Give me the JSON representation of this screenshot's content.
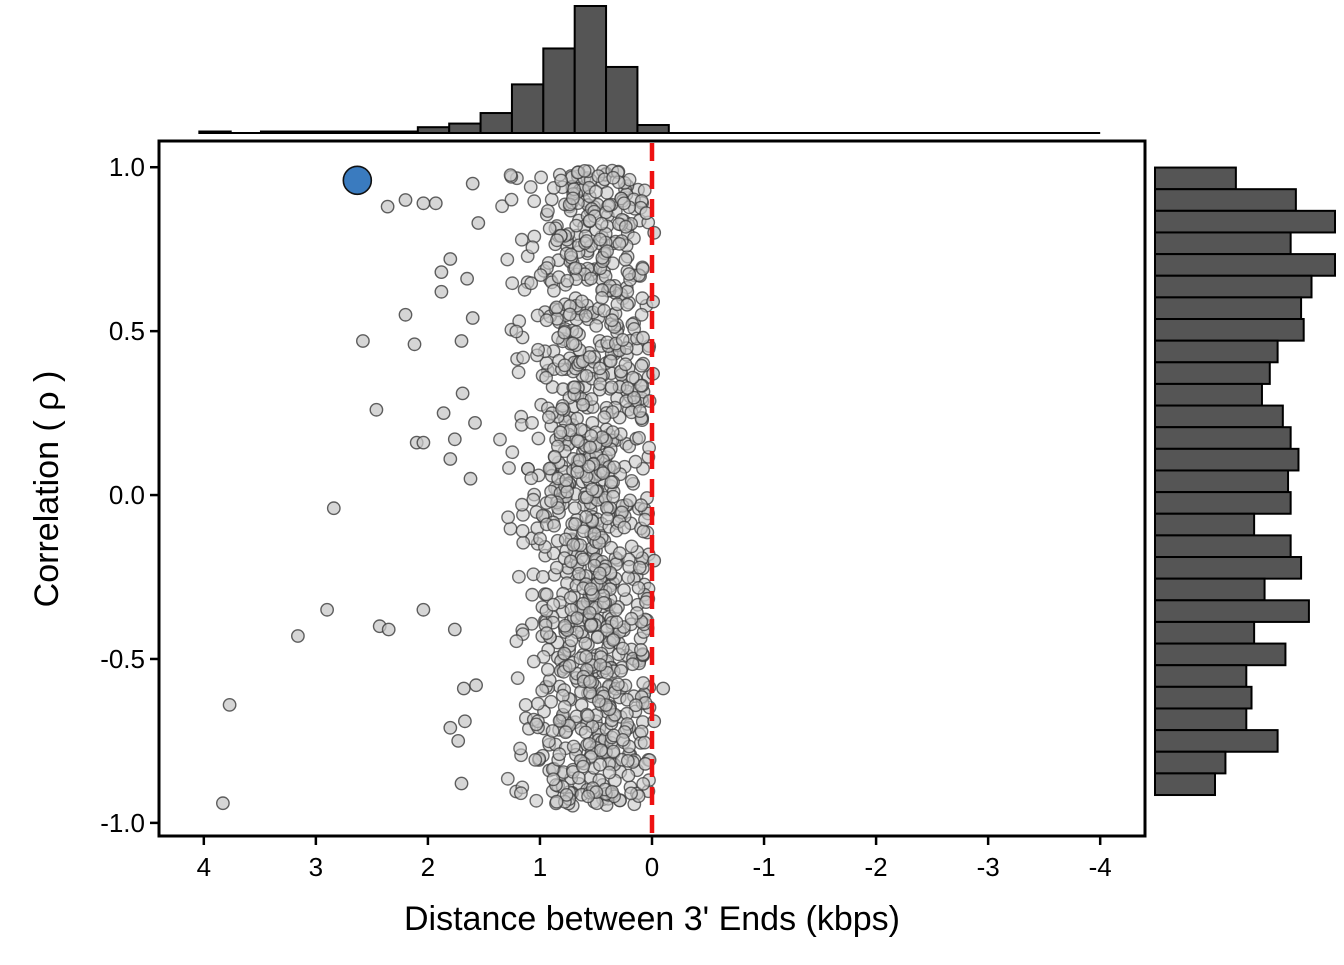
{
  "chart_data": {
    "type": "scatter",
    "xlabel": "Distance between 3' Ends (kbps)",
    "ylabel": "Correlation ( ρ )",
    "xlim": [
      4.4,
      -4.4
    ],
    "ylim": [
      -1.04,
      1.08
    ],
    "x_ticks": [
      4,
      3,
      2,
      1,
      0,
      -1,
      -2,
      -3,
      -4
    ],
    "x_tick_labels": [
      "4",
      "3",
      "2",
      "1",
      "0",
      "-1",
      "-2",
      "-3",
      "-4"
    ],
    "y_ticks": [
      1.0,
      0.5,
      0.0,
      -0.5,
      -1.0
    ],
    "y_tick_labels": [
      "1.0",
      "0.5",
      "0.0",
      "-0.5",
      "-1.0"
    ],
    "reference_line": {
      "x": 0,
      "style": "dashed",
      "color": "#ee1111"
    },
    "highlight_point": {
      "x": 2.63,
      "y": 0.96,
      "color": "#3a7bbf"
    },
    "outlier_points": [
      [
        3.83,
        -0.94
      ],
      [
        3.77,
        -0.64
      ],
      [
        3.16,
        -0.43
      ],
      [
        2.9,
        -0.35
      ],
      [
        2.84,
        -0.04
      ],
      [
        2.58,
        0.97
      ],
      [
        2.46,
        0.26
      ],
      [
        2.43,
        -0.4
      ],
      [
        2.36,
        0.88
      ],
      [
        2.58,
        0.47
      ],
      [
        2.35,
        -0.41
      ],
      [
        2.2,
        0.9
      ],
      [
        2.2,
        0.55
      ],
      [
        2.12,
        0.46
      ],
      [
        2.1,
        0.16
      ],
      [
        2.04,
        0.16
      ],
      [
        2.04,
        -0.35
      ],
      [
        2.04,
        0.89
      ],
      [
        1.93,
        0.89
      ],
      [
        1.88,
        0.68
      ],
      [
        1.88,
        0.62
      ],
      [
        1.86,
        0.25
      ],
      [
        1.8,
        -0.71
      ],
      [
        1.8,
        0.11
      ],
      [
        1.8,
        0.72
      ],
      [
        1.76,
        0.17
      ],
      [
        1.76,
        -0.41
      ],
      [
        1.73,
        -0.75
      ],
      [
        1.7,
        0.47
      ],
      [
        1.7,
        -0.88
      ],
      [
        1.69,
        0.31
      ],
      [
        1.68,
        -0.59
      ],
      [
        1.67,
        -0.69
      ],
      [
        1.65,
        0.66
      ],
      [
        1.62,
        0.05
      ],
      [
        1.6,
        0.54
      ],
      [
        1.6,
        0.95
      ],
      [
        1.58,
        0.22
      ],
      [
        1.57,
        -0.58
      ],
      [
        1.55,
        0.83
      ]
    ],
    "point_cluster": {
      "x_range": [
        0.02,
        1.4
      ],
      "x_mode": 0.55,
      "y_range": [
        -0.95,
        0.99
      ],
      "approx_count": 1100,
      "fill": "#c8c8c8",
      "stroke": "#3a3a3a"
    },
    "x_histogram": {
      "bin_width": 0.28,
      "bins": [
        {
          "x": 3.9,
          "count": 1
        },
        {
          "x": 3.35,
          "count": 1
        },
        {
          "x": 3.07,
          "count": 1
        },
        {
          "x": 2.79,
          "count": 2
        },
        {
          "x": 2.51,
          "count": 2
        },
        {
          "x": 2.23,
          "count": 3
        },
        {
          "x": 1.95,
          "count": 16
        },
        {
          "x": 1.67,
          "count": 26
        },
        {
          "x": 1.39,
          "count": 55
        },
        {
          "x": 1.11,
          "count": 134
        },
        {
          "x": 0.83,
          "count": 233
        },
        {
          "x": 0.55,
          "count": 350
        },
        {
          "x": 0.27,
          "count": 182
        },
        {
          "x": -0.01,
          "count": 22
        }
      ],
      "baseline_range": [
        4.0,
        -4.0
      ]
    },
    "y_histogram": {
      "bin_width": 0.066,
      "bins": [
        {
          "y": 0.966,
          "count": 31
        },
        {
          "y": 0.9,
          "count": 54
        },
        {
          "y": 0.834,
          "count": 69
        },
        {
          "y": 0.768,
          "count": 52
        },
        {
          "y": 0.702,
          "count": 69
        },
        {
          "y": 0.636,
          "count": 60
        },
        {
          "y": 0.57,
          "count": 56
        },
        {
          "y": 0.504,
          "count": 57
        },
        {
          "y": 0.438,
          "count": 47
        },
        {
          "y": 0.372,
          "count": 44
        },
        {
          "y": 0.306,
          "count": 41
        },
        {
          "y": 0.24,
          "count": 49
        },
        {
          "y": 0.174,
          "count": 52
        },
        {
          "y": 0.108,
          "count": 55
        },
        {
          "y": 0.042,
          "count": 51
        },
        {
          "y": -0.024,
          "count": 52
        },
        {
          "y": -0.09,
          "count": 38
        },
        {
          "y": -0.156,
          "count": 52
        },
        {
          "y": -0.222,
          "count": 56
        },
        {
          "y": -0.288,
          "count": 42
        },
        {
          "y": -0.354,
          "count": 59
        },
        {
          "y": -0.42,
          "count": 38
        },
        {
          "y": -0.486,
          "count": 50
        },
        {
          "y": -0.552,
          "count": 35
        },
        {
          "y": -0.618,
          "count": 37
        },
        {
          "y": -0.684,
          "count": 35
        },
        {
          "y": -0.75,
          "count": 47
        },
        {
          "y": -0.816,
          "count": 27
        },
        {
          "y": -0.882,
          "count": 23
        }
      ]
    },
    "histogram_fill": "#555555"
  }
}
